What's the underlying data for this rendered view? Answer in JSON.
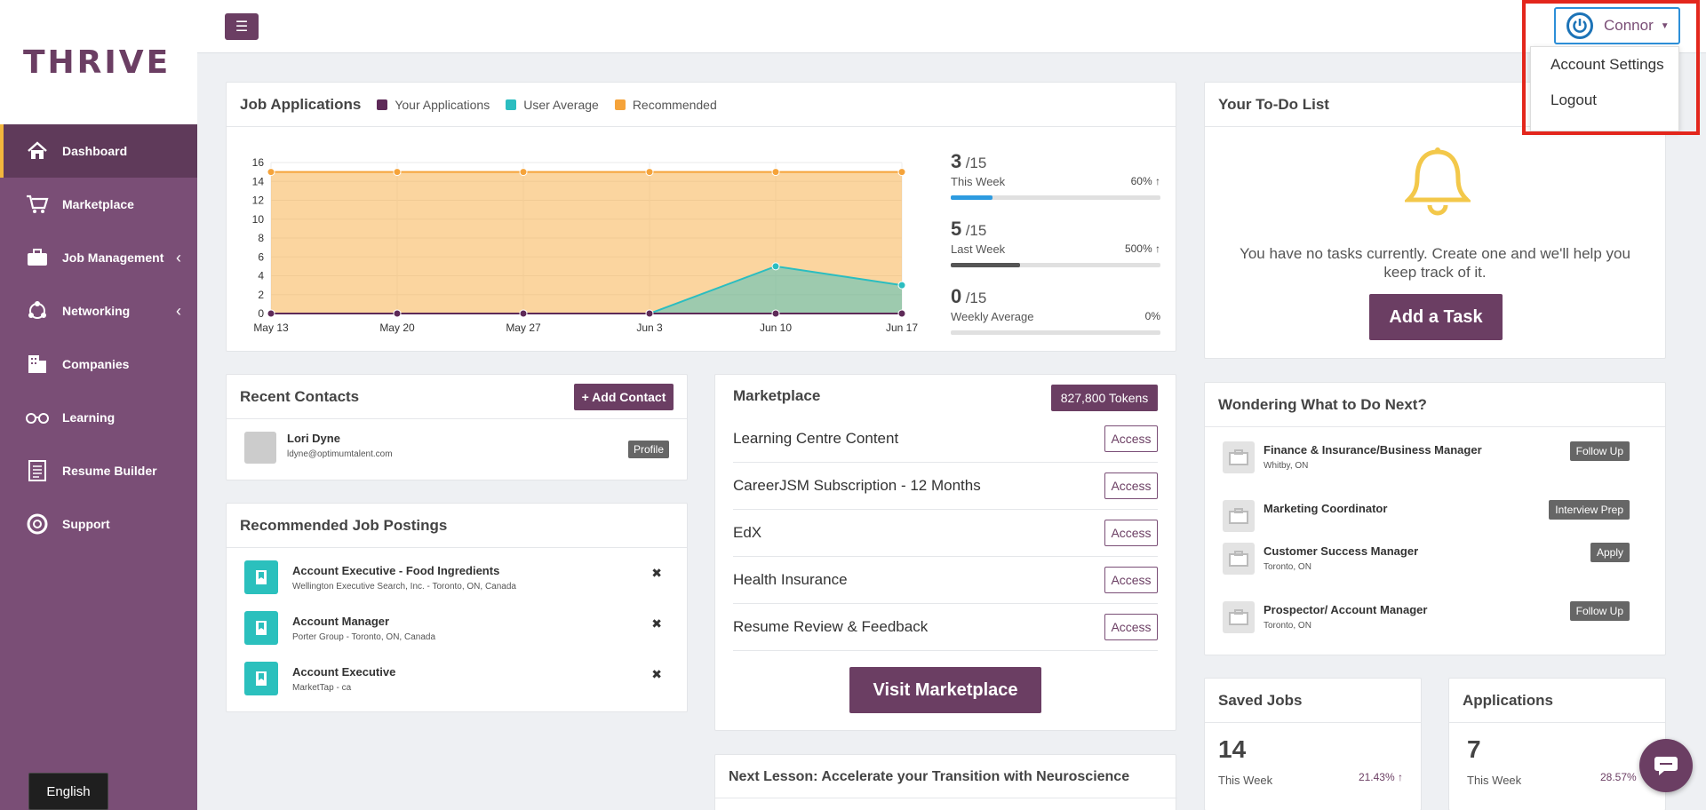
{
  "brand": {
    "logo_text": "THRIVE"
  },
  "sidebar": {
    "items": [
      {
        "label": "Dashboard",
        "icon": "home-icon"
      },
      {
        "label": "Marketplace",
        "icon": "cart-icon"
      },
      {
        "label": "Job Management",
        "icon": "briefcase-icon"
      },
      {
        "label": "Networking",
        "icon": "network-icon"
      },
      {
        "label": "Companies",
        "icon": "building-icon"
      },
      {
        "label": "Learning",
        "icon": "glasses-icon"
      },
      {
        "label": "Resume Builder",
        "icon": "document-icon"
      },
      {
        "label": "Support",
        "icon": "lifebuoy-icon"
      }
    ],
    "language": "English"
  },
  "header": {
    "user_name": "Connor",
    "dropdown": [
      "Account Settings",
      "Logout"
    ]
  },
  "job_applications": {
    "title": "Job Applications",
    "legend": [
      "Your Applications",
      "User Average",
      "Recommended"
    ],
    "stats": [
      {
        "value": "3",
        "total": "/15",
        "label": "This Week",
        "pct": "60%",
        "trend": "↑",
        "progress": 0.2,
        "color": "#2d9be0"
      },
      {
        "value": "5",
        "total": "/15",
        "label": "Last Week",
        "pct": "500%",
        "trend": "↑",
        "progress": 0.33,
        "color": "#555555"
      },
      {
        "value": "0",
        "total": "/15",
        "label": "Weekly Average",
        "pct": "0%",
        "trend": "",
        "progress": 0,
        "color": "#555555"
      }
    ]
  },
  "chart_data": {
    "type": "area",
    "categories": [
      "May 13",
      "May 20",
      "May 27",
      "Jun  3",
      "Jun 10",
      "Jun 17"
    ],
    "series": [
      {
        "name": "Your Applications",
        "values": [
          0,
          0,
          0,
          0,
          0,
          0
        ],
        "color": "#5e2a58"
      },
      {
        "name": "User Average",
        "values": [
          0,
          0,
          0,
          0,
          5,
          3
        ],
        "color": "#2bbdc0"
      },
      {
        "name": "Recommended",
        "values": [
          15,
          15,
          15,
          15,
          15,
          15
        ],
        "color": "#f5a33a"
      }
    ],
    "yticks": [
      0,
      2,
      4,
      6,
      8,
      10,
      12,
      14,
      16
    ],
    "ylim": [
      0,
      16
    ]
  },
  "contacts": {
    "title": "Recent Contacts",
    "add_label": "+ Add Contact",
    "items": [
      {
        "name": "Lori Dyne",
        "email": "ldyne@optimumtalent.com",
        "action": "Profile"
      }
    ]
  },
  "postings": {
    "title": "Recommended Job Postings",
    "items": [
      {
        "title": "Account Executive - Food Ingredients",
        "sub": "Wellington Executive Search, Inc. - Toronto, ON, Canada"
      },
      {
        "title": "Account Manager",
        "sub": "Porter Group - Toronto, ON, Canada"
      },
      {
        "title": "Account Executive",
        "sub": "MarketTap - ca"
      }
    ],
    "dismiss": "✖"
  },
  "marketplace": {
    "title": "Marketplace",
    "tokens": "827,800 Tokens",
    "access_label": "Access",
    "items": [
      "Learning Centre Content",
      "CareerJSM Subscription - 12 Months",
      "EdX",
      "Health Insurance",
      "Resume Review & Feedback"
    ],
    "visit_label": "Visit Marketplace"
  },
  "next_lesson": {
    "title": "Next Lesson: Accelerate your Transition with Neuroscience"
  },
  "todo": {
    "title": "Your To-Do List",
    "empty_text": "You have no tasks currently. Create one and we'll help you keep track of it.",
    "add_label": "Add a Task"
  },
  "next_steps": {
    "title": "Wondering What to Do Next?",
    "items": [
      {
        "title": "Finance & Insurance/Business Manager",
        "sub": "Whitby, ON",
        "action": "Follow Up"
      },
      {
        "title": "Marketing Coordinator",
        "sub": "",
        "action": "Interview Prep"
      },
      {
        "title": "Customer Success Manager",
        "sub": "Toronto, ON",
        "action": "Apply"
      },
      {
        "title": "Prospector/ Account Manager",
        "sub": "Toronto, ON",
        "action": "Follow Up"
      }
    ]
  },
  "saved_jobs": {
    "title": "Saved Jobs",
    "value": "14",
    "label": "This Week",
    "pct": "21.43%",
    "trend": "↑"
  },
  "applications": {
    "title": "Applications",
    "value": "7",
    "label": "This Week",
    "pct": "28.57%"
  }
}
